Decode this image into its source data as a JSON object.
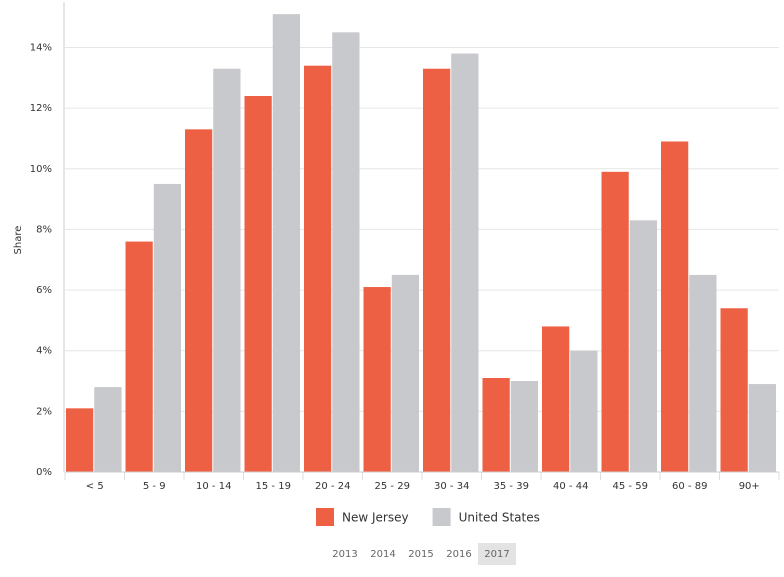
{
  "chart_data": {
    "type": "bar",
    "y_label": "Share",
    "categories": [
      "< 5",
      "5 - 9",
      "10 - 14",
      "15 - 19",
      "20 - 24",
      "25 - 29",
      "30 - 34",
      "35 - 39",
      "40 - 44",
      "45 - 59",
      "60 - 89",
      "90+"
    ],
    "series": [
      {
        "name": "New Jersey",
        "color": "#ee6044",
        "values": [
          2.1,
          7.6,
          11.3,
          12.4,
          13.4,
          6.1,
          13.3,
          3.1,
          4.8,
          9.9,
          10.9,
          5.4
        ]
      },
      {
        "name": "United States",
        "color": "#c8c9cd",
        "values": [
          2.8,
          9.5,
          13.3,
          15.1,
          14.5,
          6.5,
          13.8,
          3.0,
          4.0,
          8.3,
          6.5,
          2.9
        ]
      }
    ],
    "ylim": [
      0,
      15.5
    ],
    "yticks": [
      {
        "value": 0,
        "label": "0%"
      },
      {
        "value": 2,
        "label": "2%"
      },
      {
        "value": 4,
        "label": "4%"
      },
      {
        "value": 6,
        "label": "6%"
      },
      {
        "value": 8,
        "label": "8%"
      },
      {
        "value": 10,
        "label": "10%"
      },
      {
        "value": 12,
        "label": "12%"
      },
      {
        "value": 14,
        "label": "14%"
      }
    ],
    "grid": true,
    "legend": "bottom"
  },
  "year_selector": {
    "years": [
      "2013",
      "2014",
      "2015",
      "2016",
      "2017"
    ],
    "selected": 4
  }
}
